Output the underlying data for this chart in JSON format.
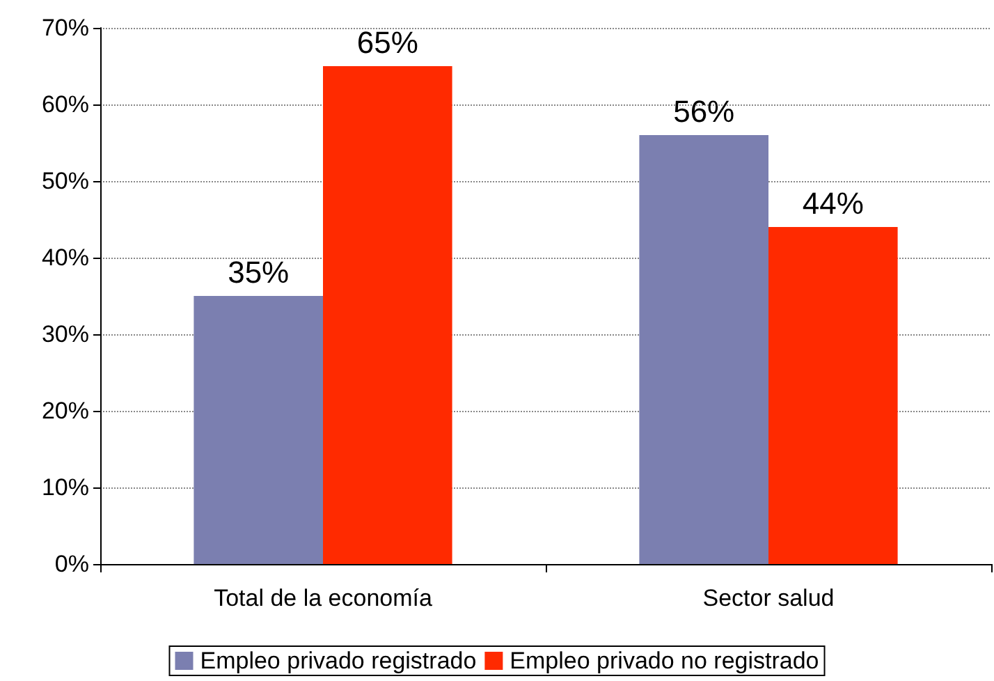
{
  "chart_data": {
    "type": "bar",
    "categories": [
      "Total de la economía",
      "Sector salud"
    ],
    "series": [
      {
        "name": "Empleo privado registrado",
        "color": "#7b7fb0",
        "values": [
          35,
          56
        ],
        "value_labels": [
          "35%",
          "56%"
        ]
      },
      {
        "name": "Empleo privado no registrado",
        "color": "#ff2a00",
        "values": [
          65,
          44
        ],
        "value_labels": [
          "65%",
          "44%"
        ]
      }
    ],
    "ylim": [
      0,
      70
    ],
    "yticks": [
      {
        "value": 0,
        "label": "0%"
      },
      {
        "value": 10,
        "label": "10%"
      },
      {
        "value": 20,
        "label": "20%"
      },
      {
        "value": 30,
        "label": "30%"
      },
      {
        "value": 40,
        "label": "40%"
      },
      {
        "value": 50,
        "label": "50%"
      },
      {
        "value": 60,
        "label": "60%"
      },
      {
        "value": 70,
        "label": "70%"
      }
    ],
    "grid": "y",
    "legend": "bottom"
  }
}
